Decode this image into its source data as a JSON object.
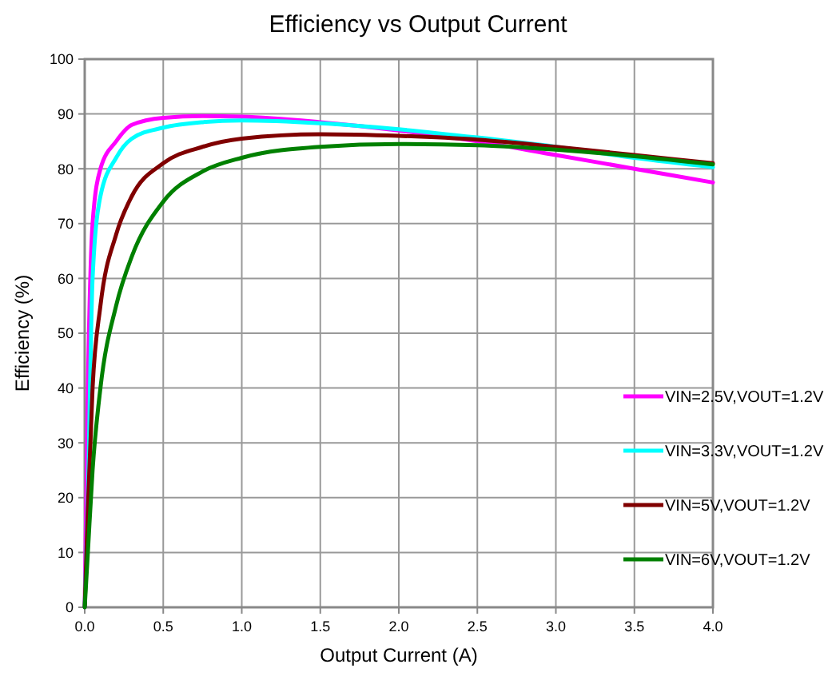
{
  "chart_data": {
    "type": "line",
    "title": "Efficiency vs Output Current",
    "xlabel": "Output Current (A)",
    "ylabel": "Efficiency (%)",
    "xlim": [
      0,
      4
    ],
    "xticks": [
      {
        "value": 0,
        "label": "0.0"
      },
      {
        "value": 0.5,
        "label": "0.5"
      },
      {
        "value": 1,
        "label": "1.0"
      },
      {
        "value": 1.5,
        "label": "1.5"
      },
      {
        "value": 2,
        "label": "2.0"
      },
      {
        "value": 2.5,
        "label": "2.5"
      },
      {
        "value": 3,
        "label": "3.0"
      },
      {
        "value": 3.5,
        "label": "3.5"
      },
      {
        "value": 4,
        "label": "4.0"
      }
    ],
    "ylim": [
      0,
      100
    ],
    "yticks": [
      0,
      10,
      20,
      30,
      40,
      50,
      60,
      70,
      80,
      90,
      100
    ],
    "grid": true,
    "legend": "right",
    "marker": "none",
    "line_style": "solid",
    "x": [
      0,
      0.02,
      0.05,
      0.1,
      0.2,
      0.3,
      0.5,
      0.75,
      1,
      1.5,
      2,
      2.5,
      3,
      3.5,
      4
    ],
    "series": [
      {
        "name": "VIN=2.5V,VOUT=1.2V",
        "color": "#ff00ff",
        "values": [
          0,
          40,
          70,
          80,
          85,
          88,
          89.3,
          89.6,
          89.5,
          88.5,
          87,
          85,
          82.5,
          80,
          77.5
        ]
      },
      {
        "name": "VIN=3.3V,VOUT=1.2V",
        "color": "#00ffff",
        "values": [
          0,
          20,
          60,
          75,
          82,
          85.5,
          87.5,
          88.5,
          88.8,
          88.3,
          87.2,
          85.7,
          84,
          82,
          80.3
        ]
      },
      {
        "name": "VIN=5V,VOUT=1.2V",
        "color": "#800000",
        "values": [
          0,
          18,
          40,
          55,
          68,
          75,
          81,
          84,
          85.5,
          86.3,
          86,
          85.3,
          84,
          82.5,
          81
        ]
      },
      {
        "name": "VIN=6V,VOUT=1.2V",
        "color": "#008000",
        "values": [
          0,
          10,
          25,
          40,
          55,
          64,
          74,
          79.5,
          82,
          84,
          84.5,
          84.3,
          83.5,
          82.3,
          80.8
        ]
      }
    ]
  }
}
